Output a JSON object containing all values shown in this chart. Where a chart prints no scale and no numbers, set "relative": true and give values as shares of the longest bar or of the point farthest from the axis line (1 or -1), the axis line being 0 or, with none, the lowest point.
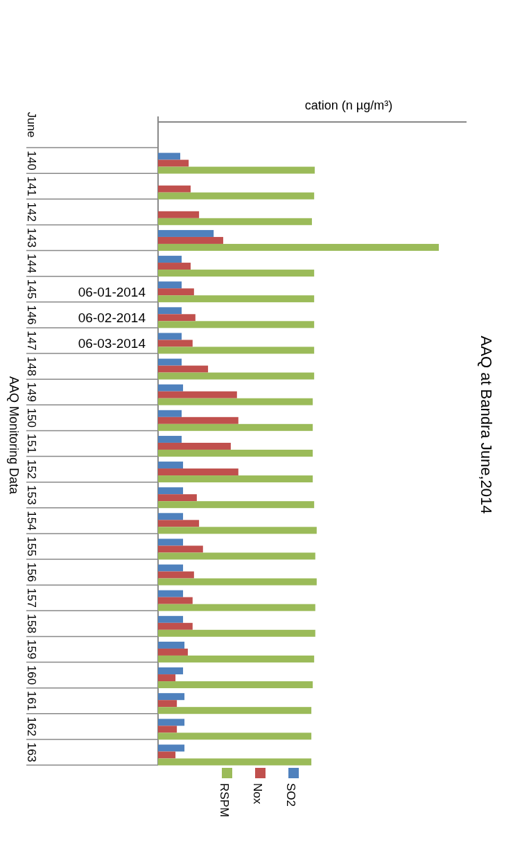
{
  "chart_data": {
    "type": "bar",
    "orientation": "horizontal",
    "relative": true,
    "title": "AAQ at Bandra June,2014",
    "xlabel": "cation (n µg/m³)",
    "ylabel": "AAQ Monitoring Data",
    "legend": "bottom",
    "annotations": [
      "June",
      "06-01-2014",
      "06-02-2014",
      "06-03-2014"
    ],
    "categories": [
      "140",
      "141",
      "142",
      "143",
      "144",
      "145",
      "146",
      "147",
      "148",
      "149",
      "150",
      "151",
      "152",
      "153",
      "154",
      "155",
      "156",
      "157",
      "158",
      "159",
      "160",
      "161",
      "162",
      "163"
    ],
    "series": [
      {
        "name": "SO2",
        "color": "#4f81bd",
        "values": [
          0.079,
          null,
          null,
          0.198,
          0.084,
          0.084,
          0.084,
          0.084,
          0.084,
          0.089,
          0.084,
          0.084,
          0.089,
          0.089,
          0.089,
          0.089,
          0.089,
          0.089,
          0.089,
          0.094,
          0.089,
          0.094,
          0.094,
          0.094
        ]
      },
      {
        "name": "Nox",
        "color": "#c0504d",
        "values": [
          0.109,
          0.116,
          0.146,
          0.232,
          0.116,
          0.128,
          0.133,
          0.123,
          0.178,
          0.281,
          0.286,
          0.259,
          0.286,
          0.138,
          0.146,
          0.16,
          0.128,
          0.123,
          0.123,
          0.106,
          0.062,
          0.067,
          0.067,
          0.062
        ]
      },
      {
        "name": "RSPM",
        "color": "#9bbb59",
        "values": [
          0.558,
          0.556,
          0.548,
          1,
          0.556,
          0.556,
          0.556,
          0.556,
          0.556,
          0.551,
          0.551,
          0.551,
          0.551,
          0.556,
          0.565,
          0.56,
          0.565,
          0.56,
          0.56,
          0.556,
          0.551,
          0.546,
          0.546,
          0.546
        ]
      }
    ]
  }
}
